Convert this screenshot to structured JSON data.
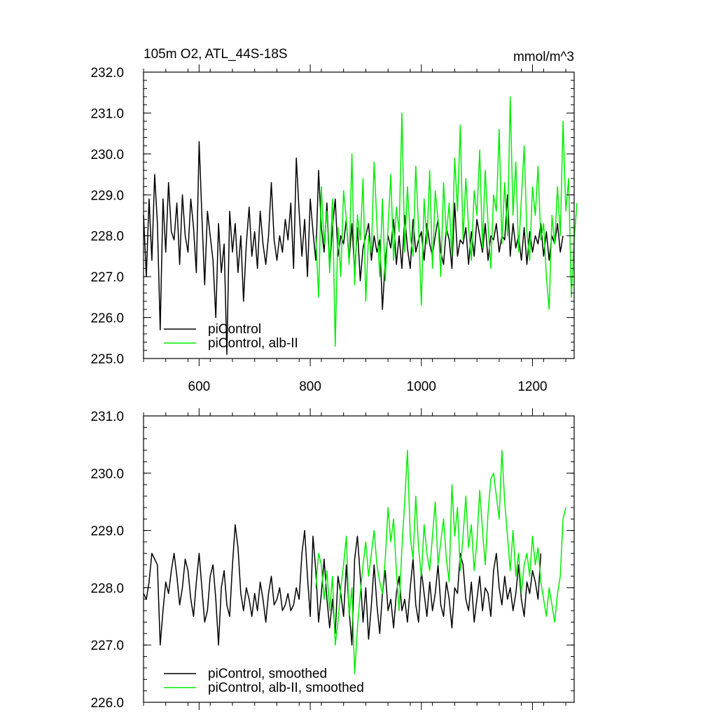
{
  "colors": {
    "piControl": "#000000",
    "alb_II": "#00ee00"
  },
  "panels": [
    {
      "title_left": "105m O2, ATL_44S-18S",
      "title_right": "mmol/m^3",
      "legend": [
        "piControl",
        "piControl, alb-II"
      ],
      "y_tick_labels": [
        "225.0",
        "226.0",
        "227.0",
        "228.0",
        "229.0",
        "230.0",
        "231.0",
        "232.0"
      ],
      "x_tick_labels": [
        "600",
        "800",
        "1000",
        "1200"
      ]
    },
    {
      "legend": [
        "piControl, smoothed",
        "piControl, alb-II, smoothed"
      ],
      "y_tick_labels": [
        "226.0",
        "227.0",
        "228.0",
        "229.0",
        "230.0",
        "231.0"
      ],
      "x_tick_labels": []
    }
  ],
  "chart_data": [
    {
      "type": "line",
      "title": "105m O2, ATL_44S-18S",
      "units": "mmol/m^3",
      "xlim": [
        500,
        1275
      ],
      "ylim": [
        225.0,
        232.0
      ],
      "x_ticks": [
        600,
        800,
        1000,
        1200
      ],
      "y_ticks": [
        225,
        226,
        227,
        228,
        229,
        230,
        231,
        232
      ],
      "legend_position": "bottom-left",
      "grid": false,
      "series": [
        {
          "name": "piControl",
          "color": "#000000",
          "x_start": 500,
          "x_step": 5,
          "values": [
            228.5,
            227.0,
            228.9,
            227.4,
            229.5,
            228.3,
            225.7,
            228.9,
            227.6,
            229.3,
            228.1,
            227.9,
            228.8,
            227.3,
            229.0,
            228.0,
            227.6,
            228.9,
            228.2,
            227.1,
            230.3,
            228.5,
            226.8,
            228.6,
            228.0,
            227.4,
            226.0,
            228.3,
            227.1,
            227.8,
            225.1,
            228.6,
            227.6,
            228.3,
            227.1,
            228.0,
            226.4,
            227.8,
            228.7,
            227.5,
            228.1,
            227.2,
            228.6,
            227.8,
            227.3,
            228.0,
            229.3,
            227.9,
            227.4,
            228.0,
            227.6,
            228.4,
            227.9,
            228.8,
            227.2,
            229.9,
            228.6,
            227.5,
            228.4,
            227.0,
            228.9,
            228.1,
            227.4,
            229.6,
            228.2,
            227.6,
            228.8,
            227.2,
            228.2,
            228.9,
            227.5,
            228.0,
            227.8,
            228.4,
            227.4,
            228.3,
            227.1,
            228.2,
            226.9,
            227.7,
            228.0,
            228.3,
            227.4,
            228.0,
            227.6,
            227.9,
            226.2,
            227.4,
            228.0,
            227.7,
            228.4,
            227.3,
            228.0,
            227.2,
            228.5,
            227.7,
            227.2,
            228.4,
            227.6,
            227.9,
            228.1,
            227.4,
            228.3,
            227.8,
            227.5,
            228.0,
            228.4,
            227.6,
            227.3,
            228.2,
            227.9,
            227.2,
            228.8,
            227.5,
            227.9,
            227.8,
            228.2,
            227.3,
            228.1,
            227.5,
            228.4,
            228.0,
            227.6,
            228.3,
            227.4,
            228.0,
            227.9,
            228.3,
            227.6,
            228.0,
            227.9,
            229.0,
            227.5,
            228.3,
            227.7,
            228.0,
            227.4,
            228.2,
            227.3,
            228.1,
            227.6,
            228.0,
            227.8,
            228.3,
            227.5,
            228.1,
            227.4,
            228.0,
            227.8,
            228.3,
            227.6,
            228.0
          ]
        },
        {
          "name": "piControl, alb-II",
          "color": "#00ee00",
          "x_start": 810,
          "x_step": 5,
          "values": [
            228.0,
            226.5,
            229.2,
            227.8,
            228.6,
            227.1,
            228.9,
            225.3,
            228.2,
            227.0,
            229.1,
            228.4,
            227.3,
            230.0,
            226.8,
            228.5,
            227.9,
            229.4,
            226.4,
            228.0,
            227.6,
            229.8,
            228.3,
            227.0,
            228.9,
            226.9,
            228.2,
            229.5,
            227.4,
            228.7,
            228.1,
            231.0,
            227.6,
            229.2,
            228.0,
            227.5,
            229.7,
            228.2,
            226.3,
            228.9,
            227.8,
            229.6,
            227.2,
            229.1,
            228.4,
            227.0,
            229.3,
            228.0,
            228.8,
            227.5,
            229.9,
            228.6,
            230.7,
            227.9,
            229.4,
            228.2,
            227.4,
            229.1,
            228.5,
            230.1,
            227.7,
            229.6,
            228.3,
            227.2,
            229.0,
            228.6,
            230.6,
            227.8,
            229.3,
            228.0,
            231.4,
            228.5,
            229.8,
            227.6,
            228.9,
            230.2,
            228.1,
            227.4,
            229.2,
            228.5,
            229.7,
            227.9,
            228.3,
            227.0,
            226.2,
            228.5,
            227.8,
            229.2,
            228.0,
            230.8,
            228.6,
            229.4,
            226.5,
            227.9,
            228.8
          ]
        }
      ]
    },
    {
      "type": "line",
      "xlim": [
        500,
        1275
      ],
      "ylim": [
        226.0,
        231.0
      ],
      "x_ticks": [
        600,
        800,
        1000,
        1200
      ],
      "y_ticks": [
        226,
        227,
        228,
        229,
        230,
        231
      ],
      "legend_position": "bottom-left",
      "grid": false,
      "series": [
        {
          "name": "piControl, smoothed",
          "color": "#000000",
          "x_start": 500,
          "x_step": 5,
          "values": [
            227.9,
            227.8,
            228.1,
            228.6,
            228.5,
            228.4,
            227.0,
            227.6,
            228.1,
            227.9,
            228.3,
            228.6,
            228.2,
            227.7,
            228.0,
            228.5,
            228.3,
            227.8,
            227.5,
            228.1,
            228.6,
            228.0,
            227.4,
            227.6,
            228.2,
            228.4,
            227.8,
            227.0,
            228.0,
            228.3,
            227.7,
            227.5,
            228.4,
            229.1,
            228.7,
            227.9,
            227.6,
            228.0,
            227.8,
            227.5,
            227.9,
            227.6,
            228.1,
            227.8,
            227.4,
            227.9,
            228.2,
            227.7,
            227.8,
            228.0,
            227.6,
            227.7,
            227.9,
            227.6,
            227.7,
            228.0,
            227.8,
            228.6,
            229.0,
            228.2,
            227.5,
            228.9,
            228.3,
            227.4,
            227.9,
            228.5,
            227.8,
            227.3,
            227.8,
            227.2,
            228.2,
            227.9,
            227.5,
            228.4,
            227.6,
            227.0,
            228.5,
            228.9,
            228.2,
            227.4,
            228.0,
            227.1,
            227.7,
            228.4,
            227.7,
            227.2,
            227.9,
            228.3,
            227.6,
            227.8,
            227.3,
            227.9,
            228.2,
            227.6,
            227.8,
            227.4,
            228.0,
            228.5,
            227.7,
            227.4,
            228.3,
            227.9,
            227.5,
            228.1,
            227.6,
            227.9,
            228.4,
            227.7,
            227.5,
            228.1,
            227.8,
            227.3,
            228.0,
            227.9,
            228.6,
            228.4,
            227.8,
            227.6,
            228.1,
            227.4,
            227.8,
            228.2,
            227.6,
            228.0,
            227.9,
            227.5,
            228.3,
            228.6,
            228.0,
            227.7,
            228.2,
            227.8,
            228.0,
            227.6,
            227.9,
            228.4,
            227.8,
            227.5,
            228.1,
            227.9,
            228.3,
            228.1,
            227.8,
            228.6
          ]
        },
        {
          "name": "piControl, alb-II, smoothed",
          "color": "#00ee00",
          "x_start": 810,
          "x_step": 5,
          "values": [
            228.0,
            228.6,
            228.4,
            227.8,
            228.3,
            227.6,
            228.2,
            227.0,
            227.4,
            228.0,
            228.4,
            228.9,
            227.5,
            228.0,
            226.5,
            227.3,
            227.9,
            228.4,
            228.8,
            228.2,
            228.6,
            229.0,
            228.4,
            228.1,
            227.9,
            228.5,
            229.4,
            228.8,
            229.2,
            228.3,
            227.6,
            228.7,
            229.5,
            230.4,
            228.9,
            228.5,
            229.6,
            228.7,
            228.2,
            229.1,
            228.6,
            228.3,
            228.9,
            229.5,
            228.4,
            228.8,
            229.2,
            228.5,
            228.1,
            229.8,
            228.9,
            229.4,
            228.3,
            228.9,
            229.6,
            228.7,
            229.1,
            228.3,
            228.8,
            229.7,
            229.0,
            228.4,
            229.3,
            229.9,
            230.0,
            229.6,
            229.2,
            230.4,
            229.5,
            228.9,
            228.3,
            229.0,
            228.2,
            228.6,
            227.9,
            228.4,
            228.6,
            228.2,
            228.9,
            228.4,
            228.7,
            228.1,
            227.8,
            227.5,
            228.0,
            227.7,
            227.4,
            227.9,
            228.2,
            229.2,
            229.4
          ]
        }
      ]
    }
  ]
}
